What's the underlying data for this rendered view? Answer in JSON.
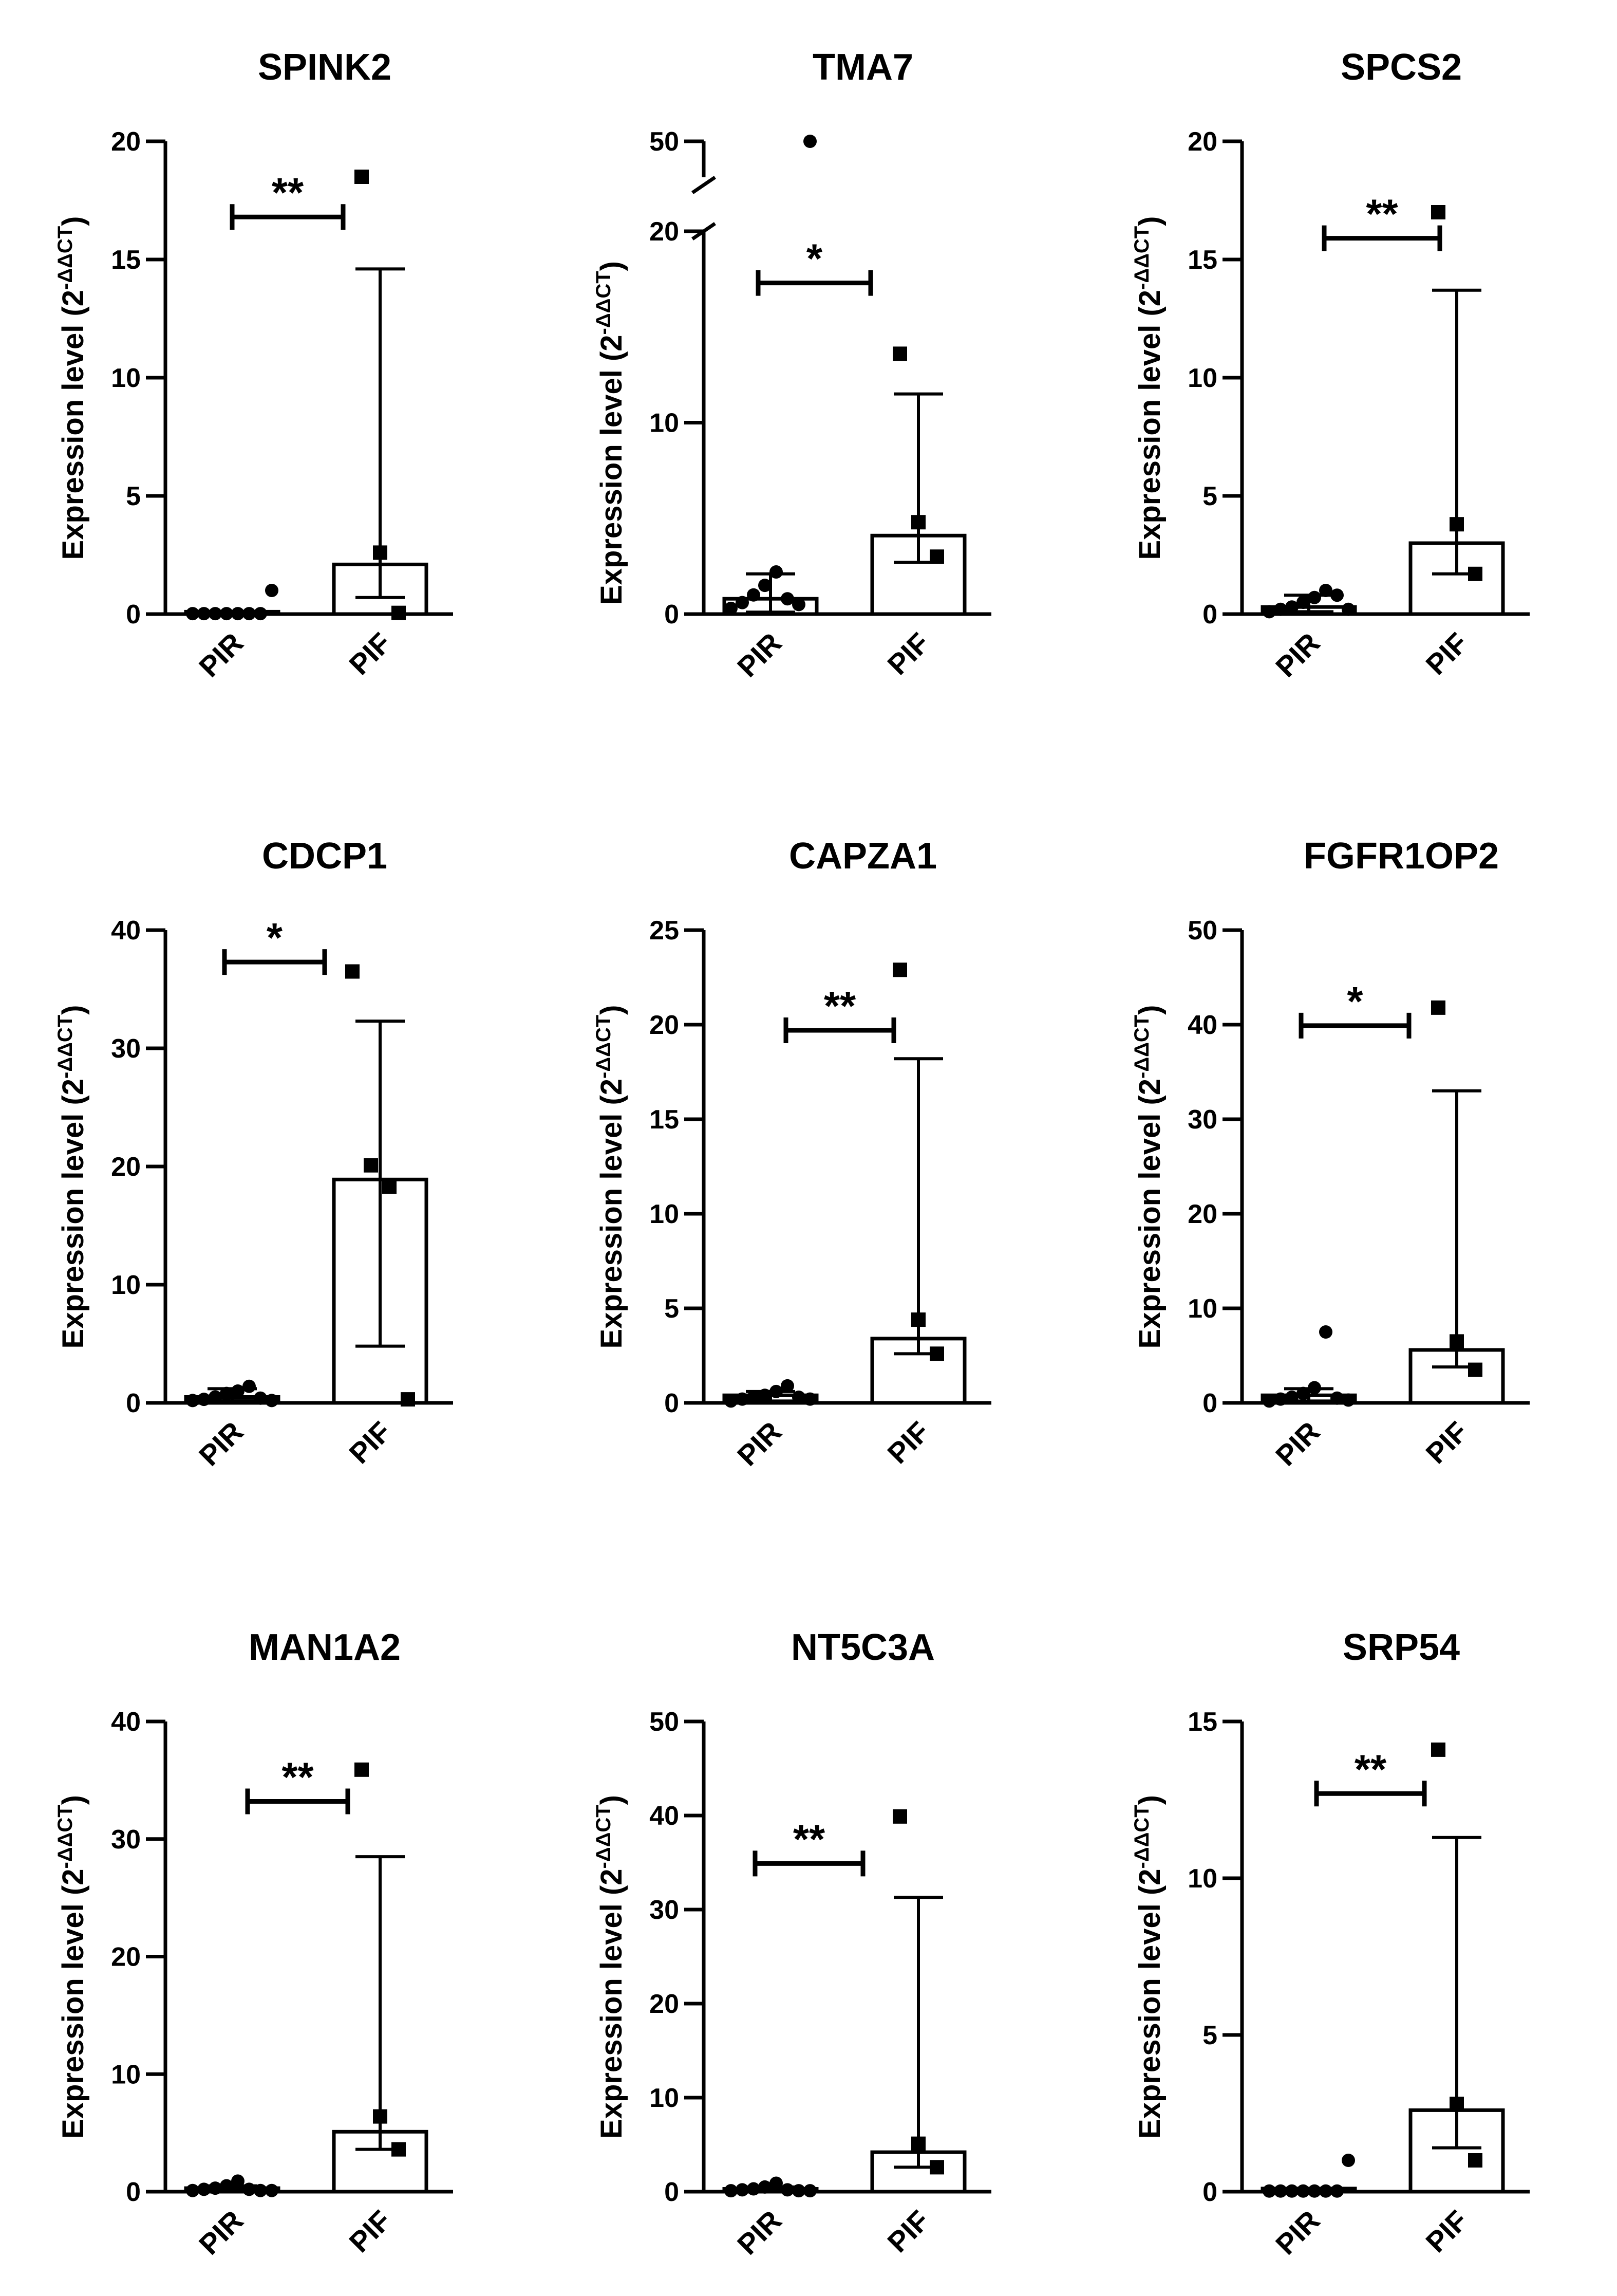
{
  "chart_data": [
    {
      "type": "bar",
      "title": "SPINK2",
      "ylabel": "Expression level",
      "yunit_base": "(2",
      "yunit_exp": "-ΔΔCT",
      "yunit_close": ")",
      "categories": [
        "PIR",
        "PIF"
      ],
      "ylim": [
        0,
        20
      ],
      "yticks": [
        0,
        5,
        10,
        15,
        20
      ],
      "ytick_labels": [
        "0",
        "5",
        "10",
        "15",
        "20"
      ],
      "bars": [
        {
          "name": "PIR",
          "value": 0.1,
          "error_low": 0.1,
          "error_high": 0.1,
          "marker": "circle",
          "points": [
            0.02,
            0.02,
            0.02,
            0.02,
            0.02,
            0.02,
            0.02,
            1.0
          ]
        },
        {
          "name": "PIF",
          "value": 2.1,
          "error_low": 0.7,
          "error_high": 14.6,
          "marker": "square",
          "points": [
            18.5,
            2.6,
            0.05
          ]
        }
      ],
      "significance": {
        "label": "**",
        "y": 16.8,
        "x_from": 0.0,
        "x_to": 0.72
      }
    },
    {
      "type": "bar",
      "title": "TMA7",
      "ylabel": "Expression level",
      "yunit_base": "(2",
      "yunit_exp": "-ΔΔCT",
      "yunit_close": ")",
      "categories": [
        "PIR",
        "PIF"
      ],
      "ylim": [
        0,
        20
      ],
      "yticks": [
        0,
        10,
        20
      ],
      "ytick_labels": [
        "0",
        "10",
        "20"
      ],
      "axis_break": {
        "at": 20,
        "upper_tick": 50,
        "upper_tick_label": "50"
      },
      "bars": [
        {
          "name": "PIR",
          "value": 0.8,
          "error_low": 0.1,
          "error_high": 2.1,
          "marker": "circle",
          "points": [
            0.3,
            0.6,
            1.0,
            1.5,
            2.2,
            0.8,
            0.5,
            50
          ]
        },
        {
          "name": "PIF",
          "value": 4.1,
          "error_low": 2.7,
          "error_high": 11.5,
          "marker": "square",
          "points": [
            13.6,
            4.8,
            3.0
          ]
        }
      ],
      "significance": {
        "label": "*",
        "y": 17.3,
        "x_from": -0.08,
        "x_to": 0.65
      }
    },
    {
      "type": "bar",
      "title": "SPCS2",
      "ylabel": "Expression level",
      "yunit_base": "(2",
      "yunit_exp": "-ΔΔCT",
      "yunit_close": ")",
      "categories": [
        "PIR",
        "PIF"
      ],
      "ylim": [
        0,
        20
      ],
      "yticks": [
        0,
        5,
        10,
        15,
        20
      ],
      "ytick_labels": [
        "0",
        "5",
        "10",
        "15",
        "20"
      ],
      "bars": [
        {
          "name": "PIR",
          "value": 0.3,
          "error_low": 0.1,
          "error_high": 0.8,
          "marker": "circle",
          "points": [
            0.1,
            0.2,
            0.3,
            0.5,
            0.7,
            1.0,
            0.8,
            0.2
          ]
        },
        {
          "name": "PIF",
          "value": 3.0,
          "error_low": 1.7,
          "error_high": 13.7,
          "marker": "square",
          "points": [
            17.0,
            3.8,
            1.7
          ]
        }
      ],
      "significance": {
        "label": "**",
        "y": 15.9,
        "x_from": 0.1,
        "x_to": 0.85
      }
    },
    {
      "type": "bar",
      "title": "CDCP1",
      "ylabel": "Expression level",
      "yunit_base": "(2",
      "yunit_exp": "-ΔΔCT",
      "yunit_close": ")",
      "categories": [
        "PIR",
        "PIF"
      ],
      "ylim": [
        0,
        40
      ],
      "yticks": [
        0,
        10,
        20,
        30,
        40
      ],
      "ytick_labels": [
        "0",
        "10",
        "20",
        "30",
        "40"
      ],
      "bars": [
        {
          "name": "PIR",
          "value": 0.5,
          "error_low": 0.2,
          "error_high": 1.2,
          "marker": "circle",
          "points": [
            0.2,
            0.3,
            0.5,
            0.8,
            1.0,
            1.4,
            0.4,
            0.2
          ]
        },
        {
          "name": "PIF",
          "value": 18.9,
          "error_low": 4.8,
          "error_high": 32.3,
          "marker": "square",
          "points": [
            36.5,
            20.1,
            18.3,
            0.3
          ]
        }
      ],
      "significance": {
        "label": "*",
        "y": 37.3,
        "x_from": -0.05,
        "x_to": 0.6
      }
    },
    {
      "type": "bar",
      "title": "CAPZA1",
      "ylabel": "Expression level",
      "yunit_base": "(2",
      "yunit_exp": "-ΔΔCT",
      "yunit_close": ")",
      "categories": [
        "PIR",
        "PIF"
      ],
      "ylim": [
        0,
        25
      ],
      "yticks": [
        0,
        5,
        10,
        15,
        20,
        25
      ],
      "ytick_labels": [
        "0",
        "5",
        "10",
        "15",
        "20",
        "25"
      ],
      "bars": [
        {
          "name": "PIR",
          "value": 0.4,
          "error_low": 0.1,
          "error_high": 0.6,
          "marker": "circle",
          "points": [
            0.1,
            0.2,
            0.3,
            0.4,
            0.6,
            0.9,
            0.3,
            0.2
          ]
        },
        {
          "name": "PIF",
          "value": 3.4,
          "error_low": 2.6,
          "error_high": 18.2,
          "marker": "square",
          "points": [
            22.9,
            4.4,
            2.6
          ]
        }
      ],
      "significance": {
        "label": "**",
        "y": 19.7,
        "x_from": 0.1,
        "x_to": 0.8
      }
    },
    {
      "type": "bar",
      "title": "FGFR1OP2",
      "ylabel": "Expression level",
      "yunit_base": "(2",
      "yunit_exp": "-ΔΔCT",
      "yunit_close": ")",
      "categories": [
        "PIR",
        "PIF"
      ],
      "ylim": [
        0,
        50
      ],
      "yticks": [
        0,
        10,
        20,
        30,
        40,
        50
      ],
      "ytick_labels": [
        "0",
        "10",
        "20",
        "30",
        "40",
        "50"
      ],
      "bars": [
        {
          "name": "PIR",
          "value": 0.8,
          "error_low": 0.2,
          "error_high": 1.5,
          "marker": "circle",
          "points": [
            0.2,
            0.4,
            0.6,
            1.0,
            1.6,
            7.5,
            0.5,
            0.3
          ]
        },
        {
          "name": "PIF",
          "value": 5.6,
          "error_low": 3.8,
          "error_high": 33.0,
          "marker": "square",
          "points": [
            41.8,
            6.5,
            3.5
          ]
        }
      ],
      "significance": {
        "label": "*",
        "y": 39.9,
        "x_from": -0.05,
        "x_to": 0.65
      }
    },
    {
      "type": "bar",
      "title": "MAN1A2",
      "ylabel": "Expression level",
      "yunit_base": "(2",
      "yunit_exp": "-ΔΔCT",
      "yunit_close": ")",
      "categories": [
        "PIR",
        "PIF"
      ],
      "ylim": [
        0,
        40
      ],
      "yticks": [
        0,
        10,
        20,
        30,
        40
      ],
      "ytick_labels": [
        "0",
        "10",
        "20",
        "30",
        "40"
      ],
      "bars": [
        {
          "name": "PIR",
          "value": 0.3,
          "error_low": 0.1,
          "error_high": 0.5,
          "marker": "circle",
          "points": [
            0.1,
            0.2,
            0.3,
            0.5,
            0.9,
            0.2,
            0.1,
            0.1
          ]
        },
        {
          "name": "PIF",
          "value": 5.1,
          "error_low": 3.6,
          "error_high": 28.5,
          "marker": "square",
          "points": [
            35.9,
            6.4,
            3.6
          ]
        }
      ],
      "significance": {
        "label": "**",
        "y": 33.2,
        "x_from": 0.1,
        "x_to": 0.75
      }
    },
    {
      "type": "bar",
      "title": "NT5C3A",
      "ylabel": "Expression level",
      "yunit_base": "(2",
      "yunit_exp": "-ΔΔCT",
      "yunit_close": ")",
      "categories": [
        "PIR",
        "PIF"
      ],
      "ylim": [
        0,
        50
      ],
      "yticks": [
        0,
        10,
        20,
        30,
        40,
        50
      ],
      "ytick_labels": [
        "0",
        "10",
        "20",
        "30",
        "40",
        "50"
      ],
      "bars": [
        {
          "name": "PIR",
          "value": 0.3,
          "error_low": 0.1,
          "error_high": 0.5,
          "marker": "circle",
          "points": [
            0.1,
            0.2,
            0.3,
            0.5,
            0.9,
            0.2,
            0.1,
            0.1
          ]
        },
        {
          "name": "PIF",
          "value": 4.2,
          "error_low": 2.6,
          "error_high": 31.3,
          "marker": "square",
          "points": [
            39.9,
            5.1,
            2.6
          ]
        }
      ],
      "significance": {
        "label": "**",
        "y": 34.9,
        "x_from": -0.1,
        "x_to": 0.6
      }
    },
    {
      "type": "bar",
      "title": "SRP54",
      "ylabel": "Expression level",
      "yunit_base": "(2",
      "yunit_exp": "-ΔΔCT",
      "yunit_close": ")",
      "categories": [
        "PIR",
        "PIF"
      ],
      "ylim": [
        0,
        15
      ],
      "yticks": [
        0,
        5,
        10,
        15
      ],
      "ytick_labels": [
        "0",
        "5",
        "10",
        "15"
      ],
      "bars": [
        {
          "name": "PIR",
          "value": 0.1,
          "error_low": 0.05,
          "error_high": 0.1,
          "marker": "circle",
          "points": [
            0.02,
            0.02,
            0.02,
            0.02,
            0.02,
            0.02,
            0.02,
            1.0
          ]
        },
        {
          "name": "PIF",
          "value": 2.6,
          "error_low": 1.4,
          "error_high": 11.3,
          "marker": "square",
          "points": [
            14.1,
            2.8,
            1.0
          ]
        }
      ],
      "significance": {
        "label": "**",
        "y": 12.7,
        "x_from": 0.05,
        "x_to": 0.75
      }
    }
  ]
}
